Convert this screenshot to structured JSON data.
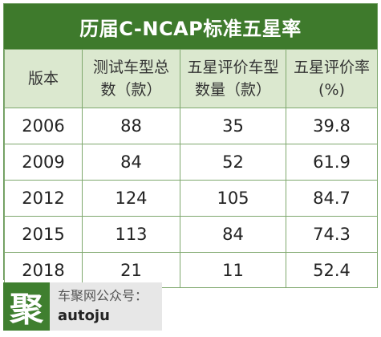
{
  "title": "历届C-NCAP标准五星率",
  "headers": [
    [
      "版本"
    ],
    [
      "测试车型总",
      "数（款）"
    ],
    [
      "五星评价车型",
      "数量（款）"
    ],
    [
      "五星评价率",
      "(%)"
    ]
  ],
  "rows": [
    [
      "2006",
      "88",
      "35",
      "39.8"
    ],
    [
      "2009",
      "84",
      "52",
      "61.9"
    ],
    [
      "2012",
      "124",
      "105",
      "84.7"
    ],
    [
      "2015",
      "113",
      "84",
      "74.3"
    ],
    [
      "2018",
      "21",
      "11",
      "52.4"
    ]
  ],
  "footer": {
    "logo_char": "聚",
    "line1": "车聚网公众号：",
    "line2": "autoju"
  },
  "colors": {
    "title_bg": "#3e7a2c",
    "header_bg": "#dbe8cf",
    "border": "#7fa86e",
    "logo_bg": "#3f7f2f",
    "footer_bg": "#e7e7e7"
  }
}
